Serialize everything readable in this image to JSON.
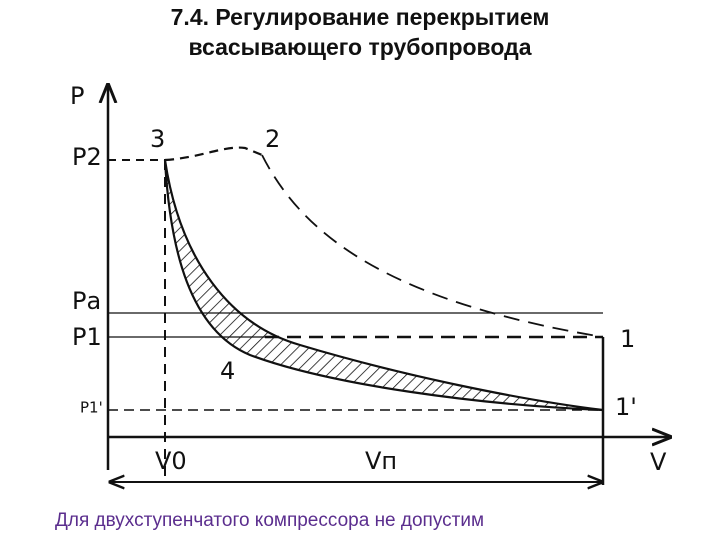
{
  "header": {
    "title_lines": [
      "7.4. Регулирование перекрытием",
      "всасывающего трубопровода"
    ]
  },
  "diagram": {
    "axis_labels": {
      "p": "Р",
      "v": "V"
    },
    "pressure_labels": {
      "p2": "Р2",
      "pa": "Ра",
      "p1": "Р1",
      "p1_prime": "Р1'"
    },
    "volume_labels": {
      "v0": "V0",
      "vh": "Vп"
    },
    "points": {
      "p3": "3",
      "p2": "2",
      "p1": "1",
      "p1_prime": "1'",
      "p4": "4"
    }
  },
  "caption": "Для двухступенчатого компрессора  не допустим"
}
